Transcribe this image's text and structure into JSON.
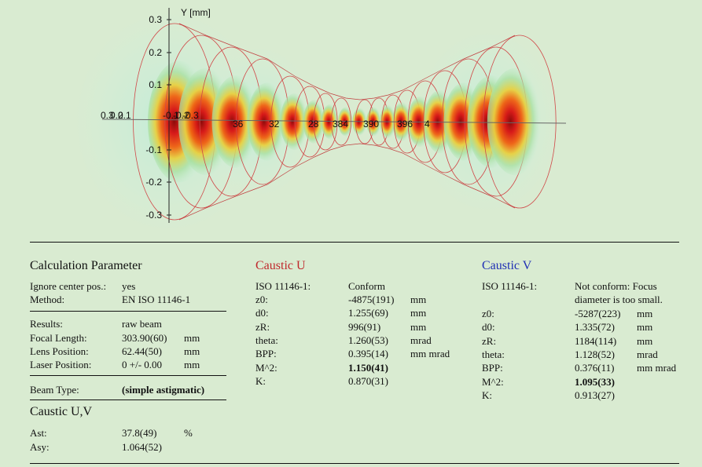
{
  "plot": {
    "y_axis_label": "Y [mm]",
    "y_ticks": [
      "0.3",
      "0.2",
      "0.1",
      "-0.1",
      "-0.2",
      "-0.3"
    ],
    "axis_labels": [
      "0.3",
      "0.2",
      "0.1",
      "-0.1",
      "-0.2",
      "-0.3",
      "36",
      "32",
      "28",
      "384",
      "390",
      "396",
      "4"
    ]
  },
  "calc": {
    "title": "Calculation Parameter",
    "ignore_label": "Ignore center pos.:",
    "ignore_value": "yes",
    "method_label": "Method:",
    "method_value": "EN ISO 11146-1",
    "results_label": "Results:",
    "results_value": "raw beam",
    "focal_label": "Focal Length:",
    "focal_value": "303.90(60)",
    "focal_unit": "mm",
    "lens_label": "Lens Position:",
    "lens_value": "62.44(50)",
    "lens_unit": "mm",
    "laser_label": "Laser Position:",
    "laser_value": "0 +/- 0.00",
    "laser_unit": "mm",
    "beam_label": "Beam Type:",
    "beam_value": "(simple astigmatic)"
  },
  "uv": {
    "title": "Caustic U,V",
    "ast_label": "Ast:",
    "ast_value": "37.8(49)",
    "ast_unit": "%",
    "asy_label": "Asy:",
    "asy_value": "1.064(52)"
  },
  "cu": {
    "title": "Caustic U",
    "iso_label": "ISO 11146-1:",
    "iso_value": "Conform",
    "rows": [
      {
        "label": "z0:",
        "value": "-4875(191)",
        "unit": "mm"
      },
      {
        "label": "d0:",
        "value": "1.255(69)",
        "unit": "mm"
      },
      {
        "label": "zR:",
        "value": "996(91)",
        "unit": "mm"
      },
      {
        "label": "theta:",
        "value": "1.260(53)",
        "unit": "mrad"
      },
      {
        "label": "BPP:",
        "value": "0.395(14)",
        "unit": "mm mrad"
      },
      {
        "label": "M^2:",
        "value": "1.150(41)",
        "unit": ""
      },
      {
        "label": "K:",
        "value": "0.870(31)",
        "unit": ""
      }
    ]
  },
  "cv": {
    "title": "Caustic V",
    "iso_label": "ISO 11146-1:",
    "iso_value_1": "Not conform: Focus",
    "iso_value_2": "diameter is too small.",
    "rows": [
      {
        "label": "z0:",
        "value": "-5287(223)",
        "unit": "mm"
      },
      {
        "label": "d0:",
        "value": "1.335(72)",
        "unit": "mm"
      },
      {
        "label": "zR:",
        "value": "1184(114)",
        "unit": "mm"
      },
      {
        "label": "theta:",
        "value": "1.128(52)",
        "unit": "mrad"
      },
      {
        "label": "BPP:",
        "value": "0.376(11)",
        "unit": "mm mrad"
      },
      {
        "label": "M^2:",
        "value": "1.095(33)",
        "unit": ""
      },
      {
        "label": "K:",
        "value": "0.913(27)",
        "unit": ""
      }
    ]
  },
  "colors": {
    "bg": "#d9ebd1",
    "red_title": "#c0282c",
    "blue_title": "#1f2fb4"
  }
}
